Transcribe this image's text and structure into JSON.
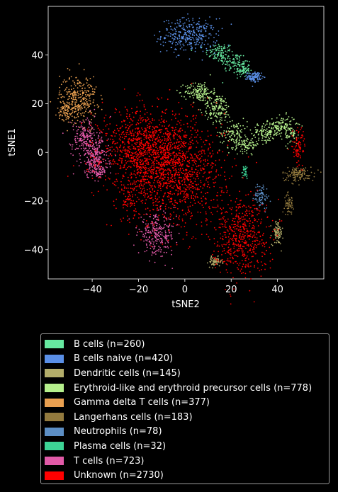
{
  "chart_data": {
    "type": "scatter",
    "title": "",
    "xlabel": "tSNE2",
    "ylabel": "tSNE1",
    "xlim": [
      -59,
      60
    ],
    "ylim": [
      -52,
      60
    ],
    "xticks": [
      -40,
      -20,
      0,
      20,
      40
    ],
    "yticks": [
      -40,
      -20,
      0,
      20,
      40
    ],
    "xtick_labels": [
      "−40",
      "−20",
      "0",
      "20",
      "40"
    ],
    "ytick_labels": [
      "−40",
      "−20",
      "0",
      "20",
      "40"
    ],
    "grid": false,
    "legend_position": "below",
    "series": [
      {
        "name": "B cells (n=260)",
        "color": "#66e8a0",
        "count": 260,
        "regions": [
          [
            15,
            41,
            3,
            2,
            0.4
          ],
          [
            21,
            37,
            3,
            2,
            0.3
          ],
          [
            25,
            34,
            1.5,
            1.5,
            0.3
          ]
        ]
      },
      {
        "name": "B cells naive (n=420)",
        "color": "#5a8fe6",
        "count": 420,
        "regions": [
          [
            2,
            48,
            6,
            3.5,
            0.75
          ],
          [
            30,
            31,
            1.5,
            1,
            0.25
          ]
        ]
      },
      {
        "name": "Dendritic cells (n=145)",
        "color": "#b3ad6a",
        "count": 145,
        "regions": [
          [
            40,
            -33,
            1.2,
            2.5,
            0.6
          ],
          [
            13,
            -45,
            1.5,
            1,
            0.4
          ]
        ]
      },
      {
        "name": "Erythroid-like and erythroid precursor cells (n=778)",
        "color": "#b5ef8c",
        "count": 778,
        "regions": [
          [
            6,
            25,
            3,
            2,
            0.2
          ],
          [
            14,
            18,
            3,
            3,
            0.2
          ],
          [
            21,
            8,
            3,
            3,
            0.15
          ],
          [
            27,
            3,
            2.5,
            1.5,
            0.1
          ],
          [
            35,
            8,
            3,
            2,
            0.15
          ],
          [
            42,
            11,
            3,
            2,
            0.15
          ],
          [
            46,
            7,
            1.5,
            2,
            0.05
          ]
        ]
      },
      {
        "name": "Gamma delta T cells (n=377)",
        "color": "#eaa050",
        "count": 377,
        "regions": [
          [
            -46,
            22,
            4,
            5,
            0.8
          ],
          [
            -51,
            17,
            2,
            2,
            0.2
          ]
        ]
      },
      {
        "name": "Langerhans cells (n=183)",
        "color": "#937a3e",
        "count": 183,
        "regions": [
          [
            49,
            -9,
            3.5,
            1.5,
            0.7
          ],
          [
            45,
            -21,
            1,
            2,
            0.3
          ]
        ]
      },
      {
        "name": "Neutrophils (n=78)",
        "color": "#5c8ec4",
        "count": 78,
        "regions": [
          [
            33,
            -18,
            1.5,
            2.5,
            1.0
          ]
        ]
      },
      {
        "name": "Plasma cells (n=32)",
        "color": "#3dd495",
        "count": 32,
        "regions": [
          [
            26,
            -8,
            0.8,
            1.5,
            1.0
          ]
        ]
      },
      {
        "name": "T cells (n=723)",
        "color": "#e25aa8",
        "count": 723,
        "regions": [
          [
            -43,
            6,
            3,
            4,
            0.25
          ],
          [
            -39,
            -2,
            3,
            4,
            0.3
          ],
          [
            -37,
            -7,
            2,
            2,
            0.1
          ],
          [
            -12,
            -34,
            4,
            4,
            0.35
          ]
        ]
      },
      {
        "name": "Unknown (n=2730)",
        "color": "#ff0000",
        "count": 2730,
        "regions": [
          [
            -18,
            2,
            9,
            8,
            0.3
          ],
          [
            -5,
            -8,
            11,
            11,
            0.45
          ],
          [
            24,
            -34,
            6,
            8,
            0.2
          ],
          [
            -24,
            -19,
            2,
            3,
            0.02
          ],
          [
            49,
            2,
            1.5,
            4,
            0.03
          ]
        ]
      }
    ]
  }
}
